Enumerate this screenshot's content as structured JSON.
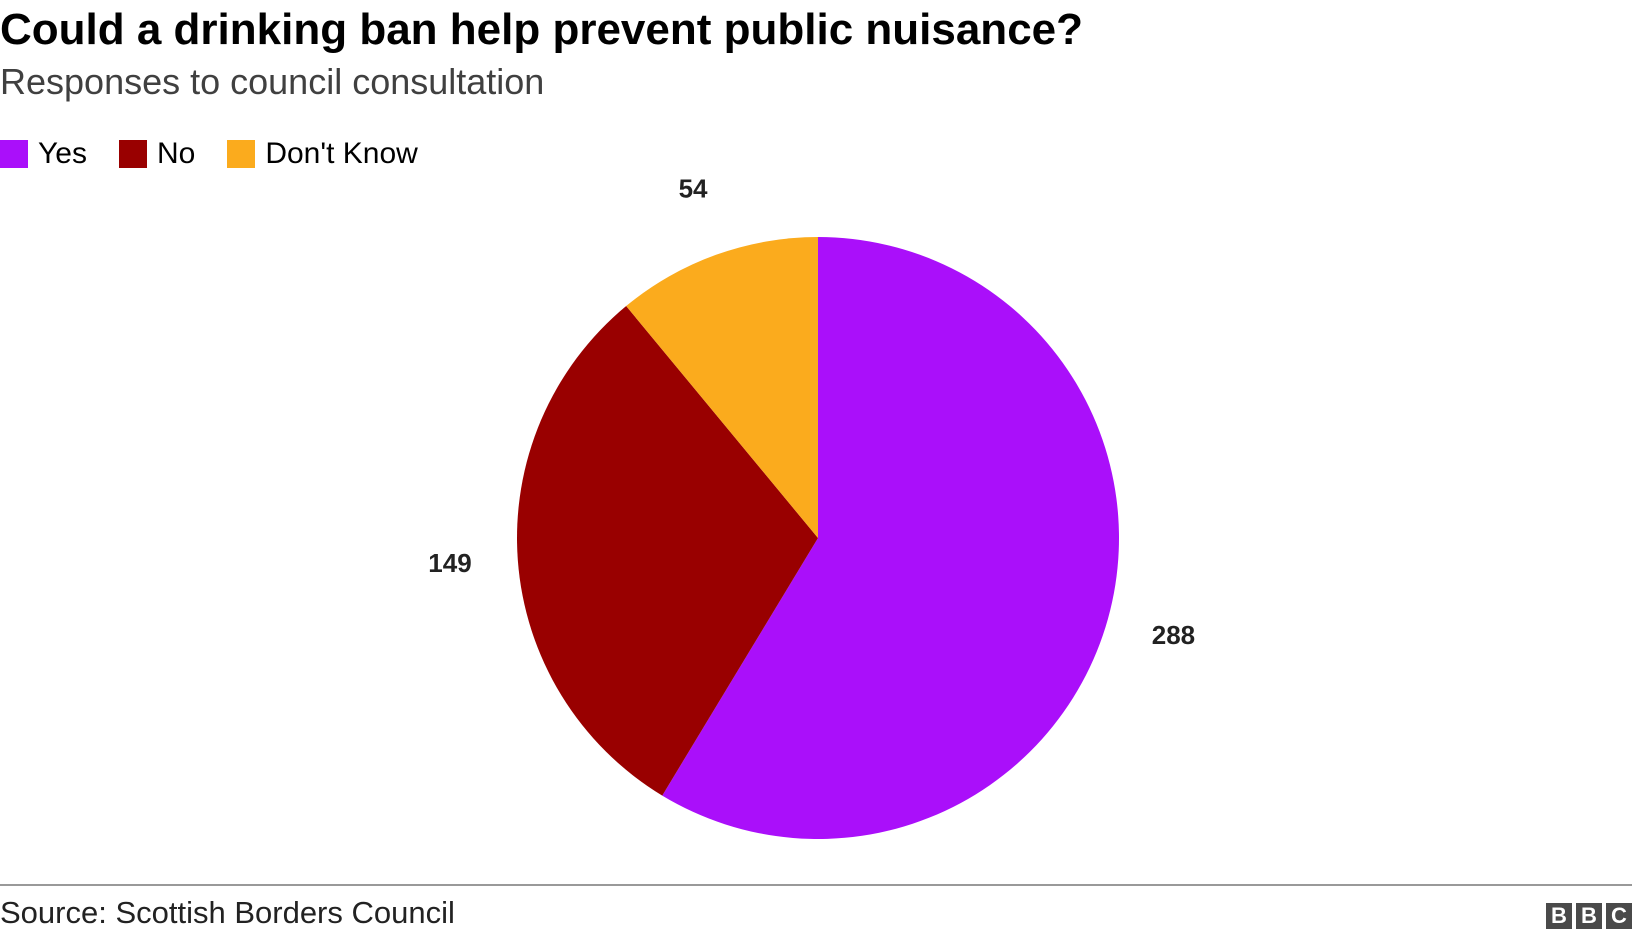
{
  "title": "Could a drinking ban help prevent public nuisance?",
  "subtitle": "Responses to council consultation",
  "source": "Source: Scottish Borders Council",
  "logo": {
    "letters": [
      "B",
      "B",
      "C"
    ]
  },
  "chart_data": {
    "type": "pie",
    "title": "Could a drinking ban help prevent public nuisance?",
    "subtitle": "Responses to council consultation",
    "legend_position": "top-left",
    "slices": [
      {
        "label": "Yes",
        "value": 288,
        "color": "#aa0ffa"
      },
      {
        "label": "No",
        "value": 149,
        "color": "#990000"
      },
      {
        "label": "Don't Know",
        "value": 54,
        "color": "#fbab1d"
      }
    ],
    "start_angle": "12 o'clock",
    "direction": "clockwise"
  }
}
